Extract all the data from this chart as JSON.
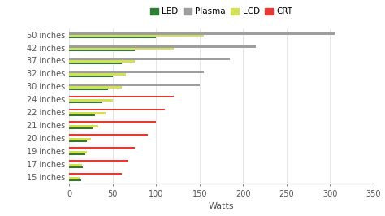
{
  "categories": [
    "50 inches",
    "42 inches",
    "37 inches",
    "32 inches",
    "30 inches",
    "24 inches",
    "22 inches",
    "21 inches",
    "20 inches",
    "19 inches",
    "17 inches",
    "15 inches"
  ],
  "series": {
    "LED": [
      100,
      75,
      60,
      50,
      45,
      38,
      30,
      27,
      20,
      18,
      16,
      14
    ],
    "LCD": [
      155,
      120,
      75,
      65,
      60,
      50,
      42,
      33,
      25,
      20,
      15,
      12
    ],
    "Plasma": [
      305,
      215,
      185,
      155,
      150,
      0,
      0,
      0,
      0,
      0,
      0,
      0
    ],
    "CRT": [
      0,
      0,
      0,
      0,
      0,
      120,
      110,
      100,
      90,
      75,
      68,
      60
    ]
  },
  "colors": {
    "LED": "#2e7d32",
    "Plasma": "#9e9e9e",
    "LCD": "#d4e157",
    "CRT": "#e53935"
  },
  "legend_order": [
    "LED",
    "Plasma",
    "LCD",
    "CRT"
  ],
  "xlabel": "Watts",
  "xlim": [
    0,
    350
  ],
  "xticks": [
    0,
    50,
    100,
    150,
    200,
    250,
    300,
    350
  ],
  "background_color": "#ffffff",
  "bar_height": 0.15,
  "axis_fontsize": 7,
  "legend_fontsize": 7.5
}
